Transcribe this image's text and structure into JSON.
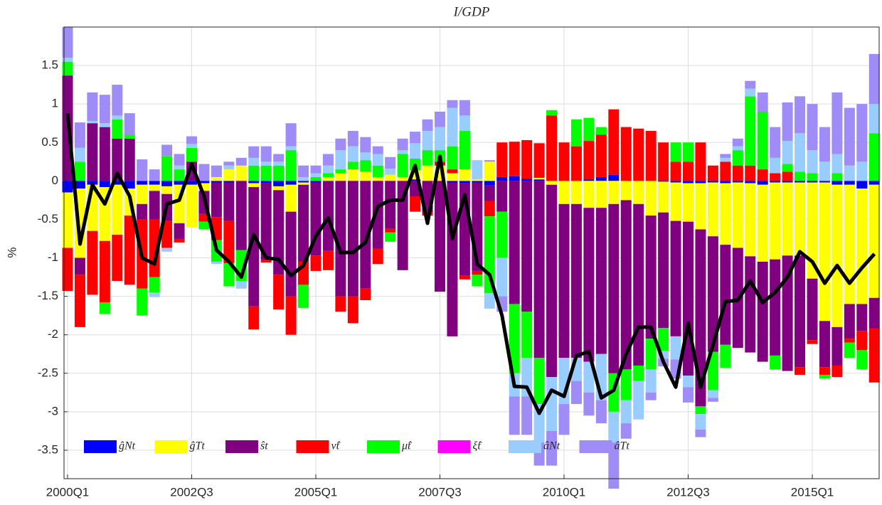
{
  "chart_data": {
    "type": "bar",
    "stacked": true,
    "title": "I/GDP",
    "y_label": "%",
    "categories": [
      "2000Q1",
      null,
      null,
      null,
      null,
      null,
      null,
      null,
      null,
      null,
      "2002Q3",
      null,
      null,
      null,
      null,
      null,
      null,
      null,
      null,
      null,
      "2005Q1",
      null,
      null,
      null,
      null,
      null,
      null,
      null,
      null,
      null,
      "2007Q3",
      null,
      null,
      null,
      null,
      null,
      null,
      null,
      null,
      null,
      "2010Q1",
      null,
      null,
      null,
      null,
      null,
      null,
      null,
      null,
      null,
      "2012Q3",
      null,
      null,
      null,
      null,
      null,
      null,
      null,
      null,
      null,
      "2015Q1",
      null,
      null,
      null,
      null,
      null
    ],
    "ylim": [
      -3.87,
      2.0
    ],
    "yticks": [
      -3.5,
      -3,
      -2.5,
      -2,
      -1.5,
      -1,
      -0.5,
      0,
      0.5,
      1,
      1.5
    ],
    "grid": true,
    "legend": "lower left",
    "series": [
      {
        "name": "ĝNt",
        "color": "#0000ff",
        "values": [
          -0.15,
          -0.1,
          -0.05,
          -0.08,
          -0.05,
          -0.1,
          -0.05,
          -0.05,
          -0.07,
          -0.05,
          -0.05,
          -0.03,
          -0.02,
          -0.02,
          0,
          -0.03,
          -0.03,
          -0.07,
          -0.05,
          -0.02,
          -0.02,
          -0.01,
          0,
          0,
          0,
          0,
          0,
          0,
          0.02,
          0,
          0,
          -0.02,
          -0.03,
          -0.02,
          -0.06,
          0.05,
          0.06,
          0.03,
          0.02,
          0,
          0,
          0,
          0.02,
          0.05,
          0.08,
          0,
          0,
          0,
          -0.01,
          -0.02,
          -0.03,
          -0.03,
          -0.02,
          -0.03,
          -0.02,
          -0.03,
          -0.05,
          -0.02,
          -0.02,
          -0.02,
          -0.02,
          -0.02,
          -0.05,
          -0.05,
          -0.1,
          -0.05
        ]
      },
      {
        "name": "ĝTt",
        "color": "#ffff00",
        "values": [
          -0.72,
          -0.9,
          -0.6,
          -0.7,
          -0.65,
          -0.35,
          -0.25,
          -0.08,
          -0.1,
          -0.5,
          -0.55,
          -0.1,
          0.05,
          0.15,
          0.2,
          -0.05,
          0,
          -0.05,
          -0.35,
          -0.03,
          0,
          0.05,
          0.1,
          0.15,
          0.12,
          0.05,
          0.08,
          0.05,
          0.12,
          0.2,
          0.2,
          0.1,
          0.15,
          0.02,
          0.25,
          0,
          0,
          0,
          0.02,
          -0.05,
          -0.3,
          -0.3,
          -0.35,
          -0.35,
          -0.3,
          -0.25,
          -0.3,
          -0.45,
          -0.4,
          -0.5,
          -0.5,
          -0.6,
          -0.7,
          -0.8,
          -0.85,
          -0.95,
          -1.0,
          -1.0,
          -0.95,
          -0.95,
          -1.25,
          -1.8,
          -1.85,
          -1.55,
          -1.5,
          -1.47
        ]
      },
      {
        "name": "ŝt",
        "color": "#800080",
        "values": [
          1.37,
          -0.22,
          0.75,
          0.7,
          0.55,
          0.55,
          -0.2,
          -0.37,
          -0.35,
          -0.2,
          0.25,
          -0.3,
          -0.45,
          -0.5,
          -0.9,
          -1.55,
          -1.0,
          -1.1,
          -1.1,
          -1.0,
          -0.95,
          -0.9,
          -1.5,
          -1.5,
          -1.4,
          -0.88,
          -0.62,
          -1.16,
          -0.2,
          -0.42,
          -1.44,
          -2.0,
          -1.2,
          -1.15,
          -0.2,
          -0.4,
          -1.6,
          -1.7,
          -2.3,
          -2.5,
          -2.0,
          -2.0,
          -2.0,
          -1.9,
          -2.2,
          -2.2,
          -2.1,
          -1.6,
          -1.5,
          -1.5,
          -2.0,
          -2.3,
          -1.5,
          -1.3,
          -1.3,
          -1.25,
          -1.3,
          -1.25,
          -1.5,
          -1.45,
          -0.8,
          -0.6,
          -0.5,
          -0.45,
          -0.35,
          -0.4
        ]
      },
      {
        "name": "ν̂t",
        "color": "#ff0000",
        "values": [
          -0.56,
          -0.68,
          -0.83,
          -0.8,
          -0.6,
          -0.9,
          -0.9,
          -0.75,
          -0.35,
          -0.05,
          0,
          -0.1,
          -0.3,
          -0.55,
          0,
          -0.3,
          -0.03,
          -0.45,
          -0.5,
          -0.3,
          -0.2,
          -0.25,
          -0.2,
          -0.35,
          -0.15,
          -0.2,
          -0.05,
          0,
          -0.2,
          -0.03,
          0.05,
          0.05,
          -0.05,
          -0.05,
          -0.2,
          0.45,
          0.45,
          0.5,
          0.45,
          0.85,
          0.5,
          0.45,
          0.5,
          0.55,
          0.85,
          0.7,
          0.68,
          0.65,
          0.5,
          0.25,
          0.25,
          0.5,
          0.2,
          0.25,
          0.2,
          0.2,
          0.15,
          0.1,
          0.12,
          -0.1,
          -0.05,
          -0.1,
          -0.15,
          -0.05,
          -0.25,
          -0.7
        ]
      },
      {
        "name": "μ̂t",
        "color": "#00ff00",
        "values": [
          0.18,
          0.25,
          0,
          -0.15,
          0.25,
          0.05,
          -0.35,
          -0.2,
          0.32,
          0.15,
          0.18,
          -0.1,
          -0.28,
          -0.3,
          -0.4,
          0.2,
          0.2,
          0.2,
          0.4,
          -0.3,
          0.05,
          0.05,
          0.05,
          0.1,
          0.15,
          0.15,
          -0.12,
          0.3,
          0.15,
          0.2,
          0.15,
          0.3,
          0.5,
          -0.15,
          -1.0,
          -0.6,
          -0.9,
          -0.6,
          -0.6,
          0.07,
          0,
          0.35,
          0.3,
          0.1,
          -0.5,
          -0.4,
          -0.2,
          -0.4,
          -0.3,
          0.25,
          0.25,
          -0.1,
          -0.5,
          -0.3,
          0.2,
          0.9,
          0.75,
          -0.18,
          0.1,
          0.12,
          0.1,
          -0.05,
          0.1,
          -0.2,
          -0.25,
          0.62
        ]
      },
      {
        "name": "ξ̂t",
        "color": "#ff00ff",
        "values": [
          0,
          0,
          0,
          0,
          0,
          0,
          0,
          0,
          0,
          0,
          0,
          0,
          0,
          0,
          0,
          0,
          0,
          0,
          0,
          0,
          0,
          0,
          0,
          0,
          0,
          0,
          0,
          0,
          0,
          0,
          0,
          0,
          0,
          0,
          0,
          0,
          0,
          0,
          0,
          0,
          0,
          0,
          0,
          0,
          0,
          0,
          0,
          0,
          0,
          0,
          0,
          0,
          0,
          0,
          0,
          0,
          0,
          0,
          0,
          0,
          0,
          0,
          0,
          0,
          0,
          0
        ]
      },
      {
        "name": "âNt",
        "color": "#99ccff",
        "values": [
          0.05,
          0.18,
          0.03,
          0.05,
          0.05,
          0,
          0,
          -0.06,
          -0.05,
          0.05,
          0.05,
          0,
          -0.03,
          0.05,
          -0.1,
          0.1,
          0.05,
          0.05,
          0.05,
          0.05,
          0.05,
          0.1,
          0.25,
          0.2,
          0.1,
          0.15,
          0.08,
          0.05,
          0.2,
          0.25,
          0.3,
          0.5,
          0.2,
          0.25,
          -0.2,
          -0.5,
          -0.3,
          -0.5,
          -0.5,
          -0.7,
          -0.6,
          -0.3,
          -0.4,
          -0.6,
          -0.4,
          -0.3,
          -0.5,
          -0.3,
          -0.1,
          -0.3,
          -0.15,
          -0.2,
          -0.1,
          0.05,
          0.05,
          0.1,
          0,
          0.2,
          0.3,
          0.5,
          0.3,
          0.25,
          0.25,
          0.2,
          0.25,
          0.38
        ]
      },
      {
        "name": "âTt",
        "color": "#9f8cf7",
        "values": [
          0.4,
          0.33,
          0.37,
          0.37,
          0.4,
          0.28,
          0.28,
          0.15,
          0.15,
          0.15,
          0.1,
          0.22,
          0.15,
          0.05,
          0.1,
          0.15,
          0.2,
          0.1,
          0.3,
          0.15,
          0.1,
          0.15,
          0.15,
          0.2,
          0.2,
          0.1,
          0.15,
          0.15,
          0.15,
          0.15,
          0.2,
          0.1,
          0.2,
          0,
          0.02,
          -0.2,
          -0.5,
          -0.5,
          -0.3,
          -0.45,
          -0.4,
          -0.3,
          -0.3,
          -0.3,
          -0.6,
          -0.2,
          0,
          -0.1,
          -0.1,
          -0.25,
          -0.2,
          -0.1,
          -0.05,
          0.05,
          0.1,
          0.1,
          0.25,
          0.4,
          0.5,
          0.48,
          0.6,
          0.45,
          0.8,
          0.75,
          0.75,
          0.65
        ]
      }
    ],
    "line": {
      "color": "#000000",
      "values": [
        0.88,
        -0.82,
        -0.05,
        -0.3,
        0.1,
        -0.2,
        -1.0,
        -1.08,
        -0.3,
        -0.25,
        0.22,
        -0.2,
        -0.9,
        -1.05,
        -1.25,
        -0.7,
        -1.0,
        -1.02,
        -1.23,
        -1.1,
        -0.72,
        -0.48,
        -0.93,
        -0.93,
        -0.8,
        -0.33,
        -0.25,
        -0.25,
        0.2,
        -0.55,
        0.32,
        -0.75,
        -0.18,
        -1.08,
        -1.22,
        -1.75,
        -2.67,
        -2.68,
        -3.02,
        -2.72,
        -2.8,
        -2.27,
        -2.22,
        -2.82,
        -2.72,
        -2.25,
        -1.9,
        -1.9,
        -2.35,
        -2.68,
        -1.85,
        -2.68,
        -2.13,
        -1.57,
        -1.55,
        -1.3,
        -1.58,
        -1.45,
        -1.25,
        -0.92,
        -1.05,
        -1.33,
        -1.1,
        -1.33,
        -1.13,
        -0.95
      ]
    }
  }
}
